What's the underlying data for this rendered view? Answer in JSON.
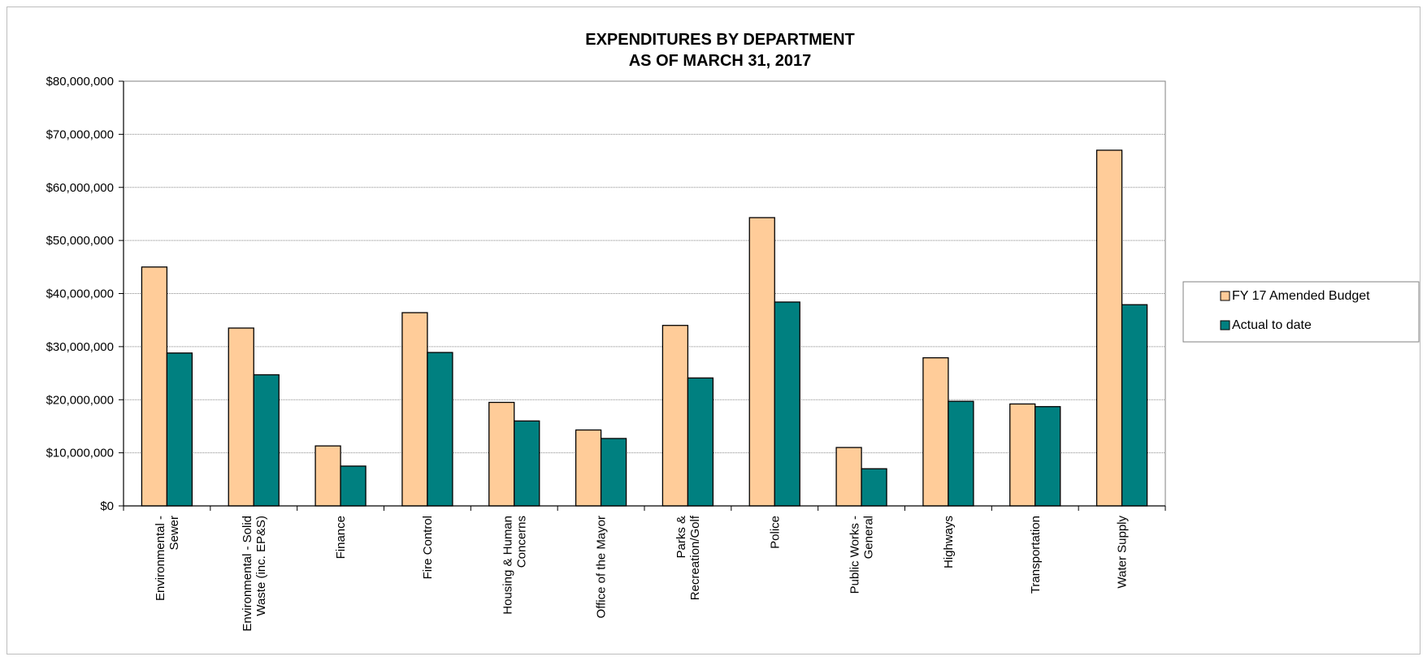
{
  "chart_data": {
    "type": "bar",
    "title": [
      "EXPENDITURES BY DEPARTMENT",
      "AS OF MARCH 31, 2017"
    ],
    "categories": [
      [
        "Environmental -",
        "Sewer"
      ],
      [
        "Environmental - Solid",
        "Waste (inc. EP&S)"
      ],
      [
        "Finance"
      ],
      [
        "Fire Control"
      ],
      [
        "Housing & Human",
        "Concerns"
      ],
      [
        "Office of the Mayor"
      ],
      [
        "Parks &",
        "Recreation/Golf"
      ],
      [
        "Police"
      ],
      [
        "Public Works -",
        "General"
      ],
      [
        "Highways"
      ],
      [
        "Transportation"
      ],
      [
        "Water Supply"
      ]
    ],
    "series": [
      {
        "name": "FY 17 Amended Budget",
        "color": "#FFCC99",
        "values": [
          45000000,
          33500000,
          11300000,
          36400000,
          19500000,
          14300000,
          34000000,
          54300000,
          11000000,
          27900000,
          19200000,
          67000000
        ]
      },
      {
        "name": "Actual to date",
        "color": "#008080",
        "values": [
          28800000,
          24700000,
          7500000,
          28900000,
          16000000,
          12700000,
          24100000,
          38400000,
          7000000,
          19700000,
          18700000,
          37900000
        ]
      }
    ],
    "ylim": [
      0,
      80000000
    ],
    "yticks": [
      0,
      10000000,
      20000000,
      30000000,
      40000000,
      50000000,
      60000000,
      70000000,
      80000000
    ],
    "ytick_labels": [
      "$0",
      "$10,000,000",
      "$20,000,000",
      "$30,000,000",
      "$40,000,000",
      "$50,000,000",
      "$60,000,000",
      "$70,000,000",
      "$80,000,000"
    ],
    "grid": true,
    "legend_position": "right"
  }
}
